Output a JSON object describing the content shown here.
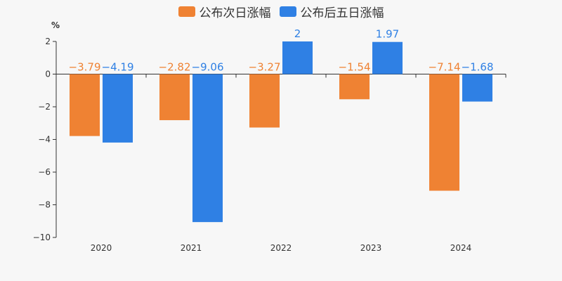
{
  "chart_data": {
    "type": "bar",
    "categories": [
      "2020",
      "2021",
      "2022",
      "2023",
      "2024"
    ],
    "series": [
      {
        "name": "公布次日涨幅",
        "color": "#ef8233",
        "values": [
          -3.79,
          -2.82,
          -3.27,
          -1.54,
          -7.14
        ]
      },
      {
        "name": "公布后五日涨幅",
        "color": "#2f80e4",
        "values": [
          -4.19,
          -9.06,
          2,
          1.97,
          -1.68
        ]
      }
    ],
    "ylabel": "%",
    "ylim": [
      -10,
      2
    ],
    "yticks": [
      2,
      0,
      -2,
      -4,
      -6,
      -8,
      -10
    ],
    "ytick_labels": [
      "2",
      "0",
      "−2",
      "−4",
      "−6",
      "−8",
      "−10"
    ],
    "data_labels": [
      [
        "−3.79",
        "−2.82",
        "−3.27",
        "−1.54",
        "−7.14"
      ],
      [
        "−4.19",
        "−9.06",
        "2",
        "1.97",
        "−1.68"
      ]
    ],
    "grid": false,
    "legend_position": "top-center"
  }
}
